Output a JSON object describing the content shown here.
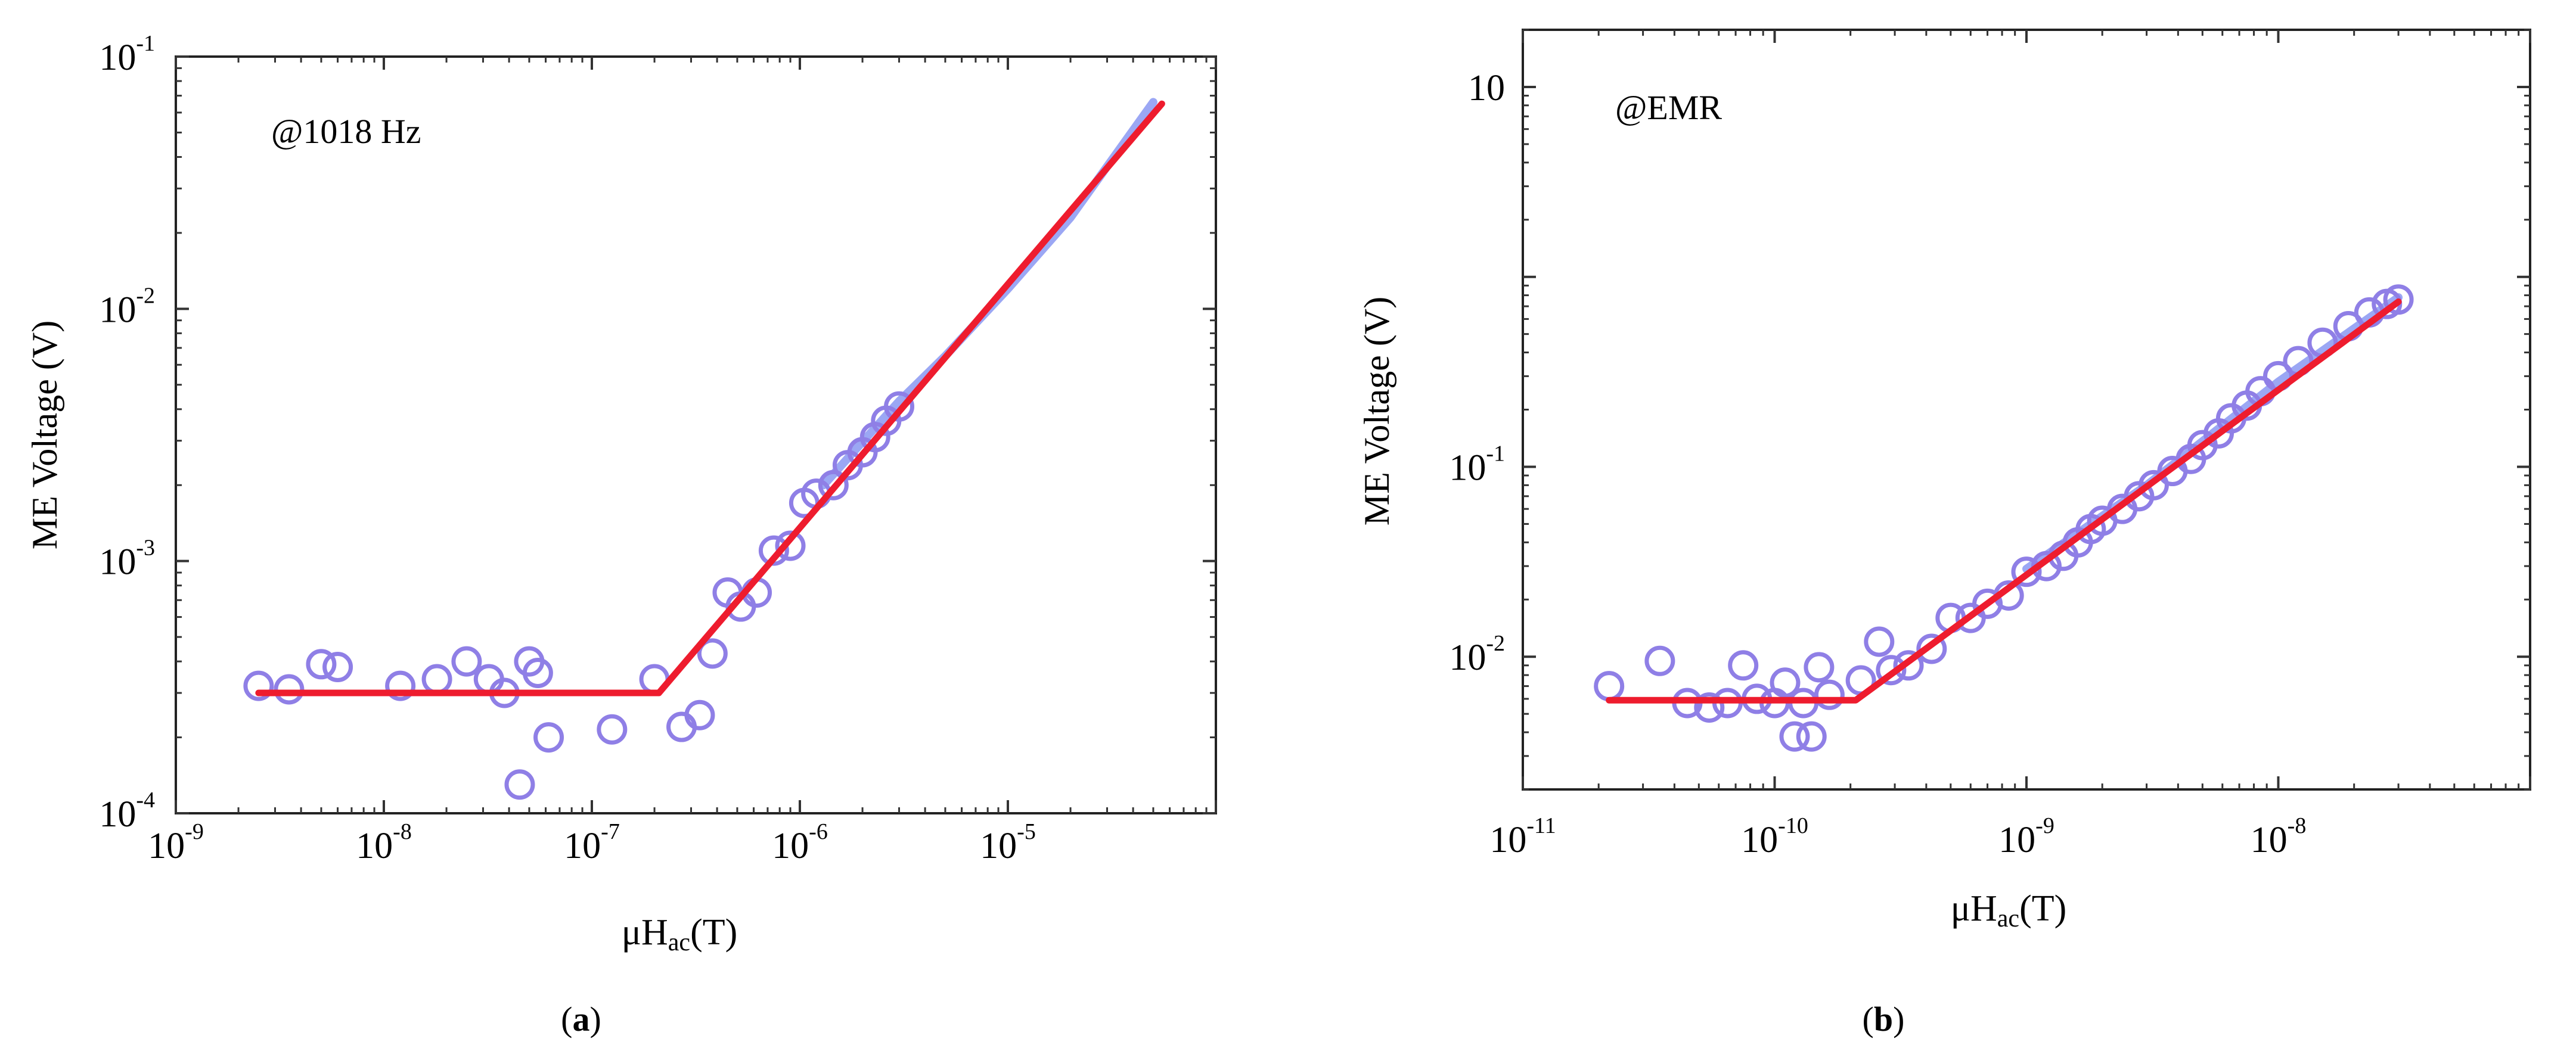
{
  "chart_data": [
    {
      "type": "scatter",
      "panel_label": "a",
      "annotation": "@1018 Hz",
      "xlabel_main": "μH",
      "xlabel_sub": "ac",
      "xlabel_unit": "(T)",
      "ylabel": "ME Voltage (V)",
      "xscale": "log",
      "yscale": "log",
      "xlim": [
        1e-09,
        0.0001
      ],
      "ylim": [
        0.0001,
        0.1
      ],
      "x_ticks": [
        {
          "value": 1e-09,
          "base": "10",
          "exp": "-9"
        },
        {
          "value": 1e-08,
          "base": "10",
          "exp": "-8"
        },
        {
          "value": 1e-07,
          "base": "10",
          "exp": "-7"
        },
        {
          "value": 1e-06,
          "base": "10",
          "exp": "-6"
        },
        {
          "value": 1e-05,
          "base": "10",
          "exp": "-5"
        }
      ],
      "y_ticks": [
        {
          "value": 0.0001,
          "base": "10",
          "exp": "-4"
        },
        {
          "value": 0.001,
          "base": "10",
          "exp": "-3"
        },
        {
          "value": 0.01,
          "base": "10",
          "exp": "-2"
        },
        {
          "value": 0.1,
          "base": "10",
          "exp": "-1"
        }
      ],
      "colors": {
        "markers": "#8f7fe6",
        "data_line": "#7a8af0",
        "fit": "#ee1c2e"
      },
      "data_points": [
        [
          2.5e-09,
          0.00032
        ],
        [
          3.5e-09,
          0.00031
        ],
        [
          5e-09,
          0.00039
        ],
        [
          6e-09,
          0.00038
        ],
        [
          1.2e-08,
          0.00032
        ],
        [
          1.8e-08,
          0.00034
        ],
        [
          2.5e-08,
          0.0004
        ],
        [
          3.2e-08,
          0.00034
        ],
        [
          3.8e-08,
          0.0003
        ],
        [
          4.5e-08,
          0.00013
        ],
        [
          5e-08,
          0.0004
        ],
        [
          5.5e-08,
          0.00036
        ],
        [
          6.2e-08,
          0.0002
        ],
        [
          1.25e-07,
          0.000215
        ],
        [
          2e-07,
          0.00034
        ],
        [
          2.7e-07,
          0.00022
        ],
        [
          3.3e-07,
          0.000245
        ],
        [
          3.8e-07,
          0.00043
        ],
        [
          4.5e-07,
          0.00075
        ],
        [
          5.2e-07,
          0.00066
        ],
        [
          6.2e-07,
          0.00075
        ],
        [
          7.5e-07,
          0.0011
        ],
        [
          9e-07,
          0.00115
        ],
        [
          1.05e-06,
          0.0017
        ],
        [
          1.2e-06,
          0.00185
        ],
        [
          1.45e-06,
          0.002
        ],
        [
          1.7e-06,
          0.0024
        ],
        [
          2e-06,
          0.0027
        ],
        [
          2.3e-06,
          0.0031
        ],
        [
          2.6e-06,
          0.0036
        ],
        [
          3e-06,
          0.0041
        ]
      ],
      "data_line": [
        [
          1.3e-06,
          0.002
        ],
        [
          3e-06,
          0.0043
        ],
        [
          5e-06,
          0.0065
        ],
        [
          1e-05,
          0.012
        ],
        [
          2e-05,
          0.023
        ],
        [
          5e-05,
          0.066
        ]
      ],
      "fit_line": [
        [
          2.5e-09,
          0.0003
        ],
        [
          2.1e-07,
          0.0003
        ],
        [
          5.5e-05,
          0.065
        ]
      ]
    },
    {
      "type": "scatter",
      "panel_label": "b",
      "annotation": "@EMR",
      "xlabel_main": "μH",
      "xlabel_sub": "ac",
      "xlabel_unit": "(T)",
      "ylabel": "ME Voltage (V)",
      "xscale": "log",
      "yscale": "log",
      "xlim": [
        1e-11,
        1e-07
      ],
      "ylim": [
        0.002,
        20
      ],
      "x_ticks": [
        {
          "value": 1e-11,
          "base": "10",
          "exp": "-11"
        },
        {
          "value": 1e-10,
          "base": "10",
          "exp": "-10"
        },
        {
          "value": 1e-09,
          "base": "10",
          "exp": "-9"
        },
        {
          "value": 1e-08,
          "base": "10",
          "exp": "-8"
        }
      ],
      "y_ticks": [
        {
          "value": 0.01,
          "base": "10",
          "exp": "-2"
        },
        {
          "value": 0.1,
          "base": "10",
          "exp": "-1"
        },
        {
          "value": 10,
          "base": "10",
          "exp": ""
        }
      ],
      "colors": {
        "markers": "#8f7fe6",
        "data_line": "#7a8af0",
        "fit": "#ee1c2e"
      },
      "data_points": [
        [
          2.2e-11,
          0.007
        ],
        [
          3.5e-11,
          0.0095
        ],
        [
          4.5e-11,
          0.0057
        ],
        [
          5.5e-11,
          0.0054
        ],
        [
          6.5e-11,
          0.0057
        ],
        [
          7.5e-11,
          0.009
        ],
        [
          8.5e-11,
          0.006
        ],
        [
          1e-10,
          0.0057
        ],
        [
          1.1e-10,
          0.0073
        ],
        [
          1.2e-10,
          0.0038
        ],
        [
          1.3e-10,
          0.0057
        ],
        [
          1.4e-10,
          0.0038
        ],
        [
          1.5e-10,
          0.0088
        ],
        [
          1.65e-10,
          0.0063
        ],
        [
          2.2e-10,
          0.0075
        ],
        [
          2.6e-10,
          0.012
        ],
        [
          2.9e-10,
          0.0085
        ],
        [
          3.4e-10,
          0.009
        ],
        [
          4.2e-10,
          0.011
        ],
        [
          5e-10,
          0.016
        ],
        [
          6e-10,
          0.016
        ],
        [
          7e-10,
          0.019
        ],
        [
          8.5e-10,
          0.021
        ],
        [
          1e-09,
          0.028
        ],
        [
          1.2e-09,
          0.03
        ],
        [
          1.4e-09,
          0.034
        ],
        [
          1.6e-09,
          0.04
        ],
        [
          1.8e-09,
          0.047
        ],
        [
          2e-09,
          0.052
        ],
        [
          2.4e-09,
          0.06
        ],
        [
          2.8e-09,
          0.07
        ],
        [
          3.2e-09,
          0.08
        ],
        [
          3.8e-09,
          0.095
        ],
        [
          4.5e-09,
          0.11
        ],
        [
          5e-09,
          0.13
        ],
        [
          5.8e-09,
          0.15
        ],
        [
          6.5e-09,
          0.18
        ],
        [
          7.5e-09,
          0.21
        ],
        [
          8.5e-09,
          0.25
        ],
        [
          1e-08,
          0.3
        ],
        [
          1.2e-08,
          0.36
        ],
        [
          1.5e-08,
          0.45
        ],
        [
          1.9e-08,
          0.55
        ],
        [
          2.3e-08,
          0.65
        ],
        [
          2.7e-08,
          0.72
        ],
        [
          3e-08,
          0.76
        ]
      ],
      "data_line": [
        [
          1e-09,
          0.029
        ],
        [
          3e-09,
          0.08
        ],
        [
          1e-08,
          0.28
        ],
        [
          3e-08,
          0.78
        ]
      ],
      "fit_line": [
        [
          2.2e-11,
          0.0059
        ],
        [
          2.1e-10,
          0.0059
        ],
        [
          3e-08,
          0.74
        ]
      ]
    }
  ]
}
